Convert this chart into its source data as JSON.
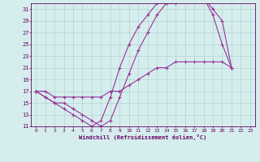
{
  "xlabel": "Windchill (Refroidissement éolien,°C)",
  "xlim": [
    0,
    23
  ],
  "ylim": [
    11,
    32
  ],
  "xticks": [
    0,
    1,
    2,
    3,
    4,
    5,
    6,
    7,
    8,
    9,
    10,
    11,
    12,
    13,
    14,
    15,
    16,
    17,
    18,
    19,
    20,
    21,
    22,
    23
  ],
  "yticks": [
    11,
    13,
    15,
    17,
    19,
    21,
    23,
    25,
    27,
    29,
    31
  ],
  "bg_color": "#d5eeed",
  "line_color": "#993399",
  "series": [
    {
      "x": [
        0,
        1,
        2,
        3,
        4,
        5,
        6,
        7,
        8,
        9,
        10,
        11,
        12,
        13,
        14,
        15,
        16,
        17,
        18,
        19,
        20,
        21
      ],
      "y": [
        17,
        16,
        15,
        14,
        13,
        12,
        11,
        12,
        16,
        21,
        25,
        28,
        30,
        32,
        32,
        33,
        33,
        33,
        33,
        31,
        29,
        21
      ]
    },
    {
      "x": [
        0,
        1,
        2,
        3,
        4,
        5,
        6,
        7,
        8,
        9,
        10,
        11,
        12,
        13,
        14,
        15,
        16,
        17,
        18,
        19,
        20,
        21
      ],
      "y": [
        17,
        16,
        15,
        15,
        14,
        13,
        12,
        11,
        12,
        16,
        20,
        24,
        27,
        30,
        32,
        32,
        33,
        33,
        33,
        30,
        25,
        21
      ]
    },
    {
      "x": [
        0,
        1,
        2,
        3,
        4,
        5,
        6,
        7,
        8,
        9,
        10,
        11,
        12,
        13,
        14,
        15,
        16,
        17,
        18,
        19,
        20,
        21
      ],
      "y": [
        17,
        17,
        16,
        16,
        16,
        16,
        16,
        16,
        17,
        17,
        18,
        19,
        20,
        21,
        21,
        22,
        22,
        22,
        22,
        22,
        22,
        21
      ]
    }
  ]
}
